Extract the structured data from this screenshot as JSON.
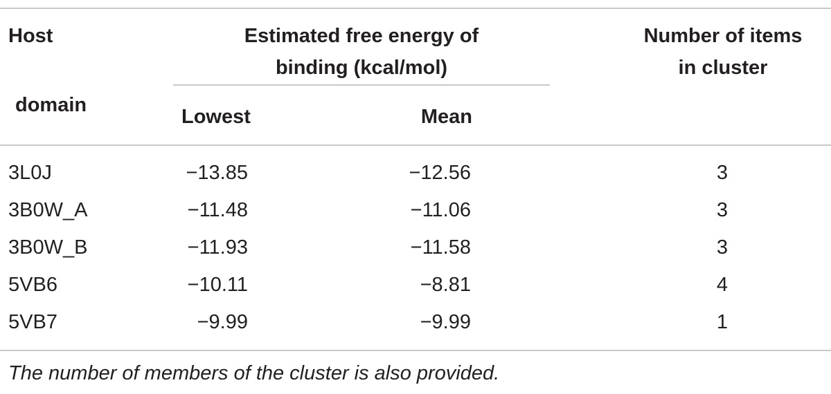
{
  "header": {
    "host": "Host",
    "domain": "domain",
    "energy_line1": "Estimated free energy of",
    "energy_line2": "binding (kcal/mol)",
    "lowest": "Lowest",
    "mean": "Mean",
    "items_line1": "Number of items",
    "items_line2": "in cluster"
  },
  "rows": [
    {
      "host": "3L0J",
      "lowest": "−13.85",
      "mean": "−12.56",
      "items": "3"
    },
    {
      "host": "3B0W_A",
      "lowest": "−11.48",
      "mean": "−11.06",
      "items": "3"
    },
    {
      "host": "3B0W_B",
      "lowest": "−11.93",
      "mean": "−11.58",
      "items": "3"
    },
    {
      "host": "5VB6",
      "lowest": "−10.11",
      "mean": "−8.81",
      "items": "4"
    },
    {
      "host": "5VB7",
      "lowest": "−9.99",
      "mean": "−9.99",
      "items": "1"
    }
  ],
  "footnote": "The number of members of the cluster is also provided."
}
